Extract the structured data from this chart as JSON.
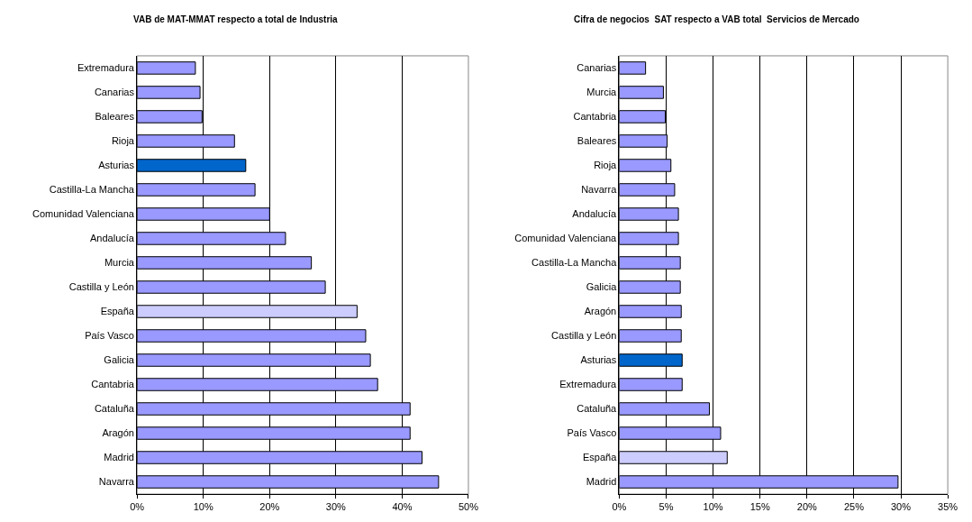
{
  "chart_data": [
    {
      "type": "bar",
      "orientation": "horizontal",
      "title": "VAB de MAT-MMAT respecto a total de Industria",
      "categories": [
        "Extremadura",
        "Canarias",
        "Baleares",
        "Rioja",
        "Asturias",
        "Castilla-La Mancha",
        "Comunidad Valenciana",
        "Andalucía",
        "Murcia",
        "Castilla y León",
        "España",
        "País Vasco",
        "Galicia",
        "Cantabria",
        "Cataluña",
        "Aragón",
        "Madrid",
        "Navarra"
      ],
      "values": [
        8.8,
        9.5,
        9.8,
        14.7,
        16.4,
        17.8,
        20.0,
        22.4,
        26.3,
        28.4,
        33.2,
        34.5,
        35.2,
        36.3,
        41.2,
        41.2,
        43.0,
        45.5
      ],
      "colors": [
        "#9999ff",
        "#9999ff",
        "#9999ff",
        "#9999ff",
        "#0066cc",
        "#9999ff",
        "#9999ff",
        "#9999ff",
        "#9999ff",
        "#9999ff",
        "#ccccff",
        "#9999ff",
        "#9999ff",
        "#9999ff",
        "#9999ff",
        "#9999ff",
        "#9999ff",
        "#9999ff"
      ],
      "xlim": [
        0,
        50
      ],
      "xticks": [
        {
          "value": 0,
          "label": "0%"
        },
        {
          "value": 10,
          "label": "10%"
        },
        {
          "value": 20,
          "label": "20%"
        },
        {
          "value": 30,
          "label": "30%"
        },
        {
          "value": 40,
          "label": "40%"
        },
        {
          "value": 50,
          "label": "50%"
        }
      ],
      "grid": "x"
    },
    {
      "type": "bar",
      "orientation": "horizontal",
      "title": "Cifra de negocios  SAT respecto a VAB total  Servicios de Mercado",
      "categories": [
        "Canarias",
        "Murcia",
        "Cantabria",
        "Baleares",
        "Rioja",
        "Navarra",
        "Andalucía",
        "Comunidad Valenciana",
        "Castilla-La Mancha",
        "Galicia",
        "Aragón",
        "Castilla y León",
        "Asturias",
        "Extremadura",
        "Cataluña",
        "País Vasco",
        "España",
        "Madrid"
      ],
      "values": [
        2.8,
        4.7,
        4.9,
        5.1,
        5.5,
        5.9,
        6.3,
        6.3,
        6.5,
        6.5,
        6.6,
        6.6,
        6.7,
        6.7,
        9.6,
        10.8,
        11.5,
        29.7
      ],
      "colors": [
        "#9999ff",
        "#9999ff",
        "#9999ff",
        "#9999ff",
        "#9999ff",
        "#9999ff",
        "#9999ff",
        "#9999ff",
        "#9999ff",
        "#9999ff",
        "#9999ff",
        "#9999ff",
        "#0066cc",
        "#9999ff",
        "#9999ff",
        "#9999ff",
        "#ccccff",
        "#9999ff"
      ],
      "xlim": [
        0,
        35
      ],
      "xticks": [
        {
          "value": 0,
          "label": "0%"
        },
        {
          "value": 5,
          "label": "5%"
        },
        {
          "value": 10,
          "label": "10%"
        },
        {
          "value": 15,
          "label": "15%"
        },
        {
          "value": 20,
          "label": "20%"
        },
        {
          "value": 25,
          "label": "25%"
        },
        {
          "value": 30,
          "label": "30%"
        },
        {
          "value": 35,
          "label": "35%"
        }
      ],
      "grid": "x"
    }
  ]
}
